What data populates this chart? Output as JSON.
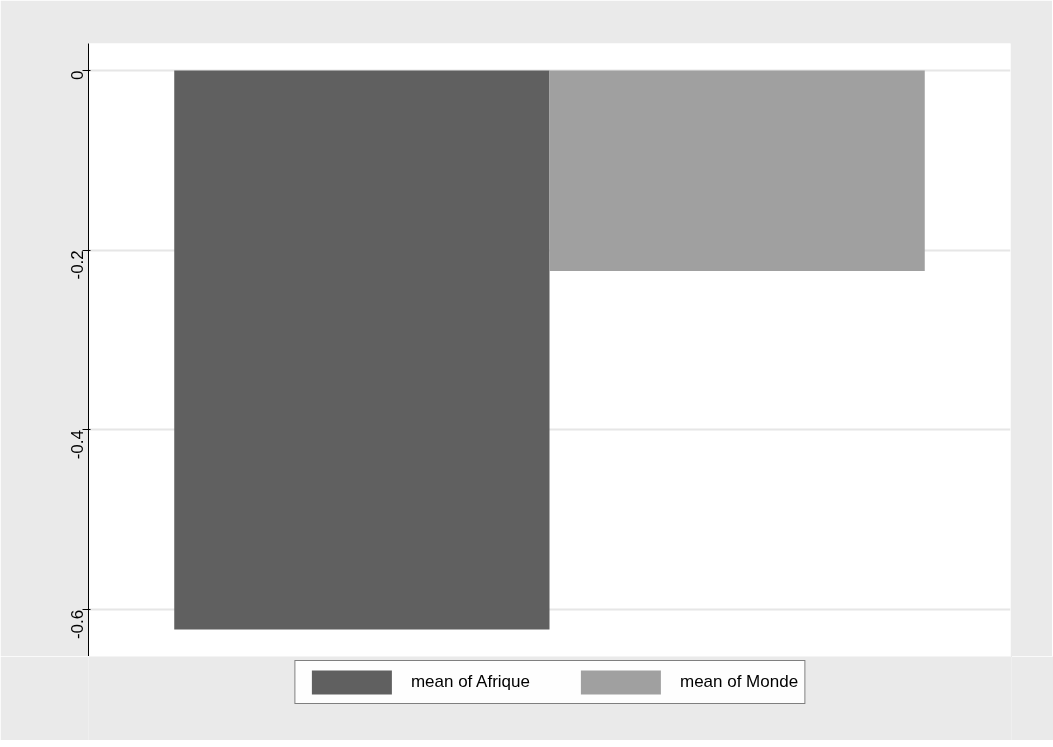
{
  "chart_data": {
    "type": "bar",
    "categories": [
      null
    ],
    "series": [
      {
        "name": "mean of Afrique",
        "color": "#606060",
        "values": [
          -0.622
        ]
      },
      {
        "name": "mean of Monde",
        "color": "#a0a0a0",
        "values": [
          -0.223
        ]
      }
    ],
    "ylim": [
      -0.652,
      0.03
    ],
    "yticks": [
      0,
      -0.2,
      -0.4,
      -0.6
    ],
    "grid": "y",
    "legend": "bottom"
  }
}
